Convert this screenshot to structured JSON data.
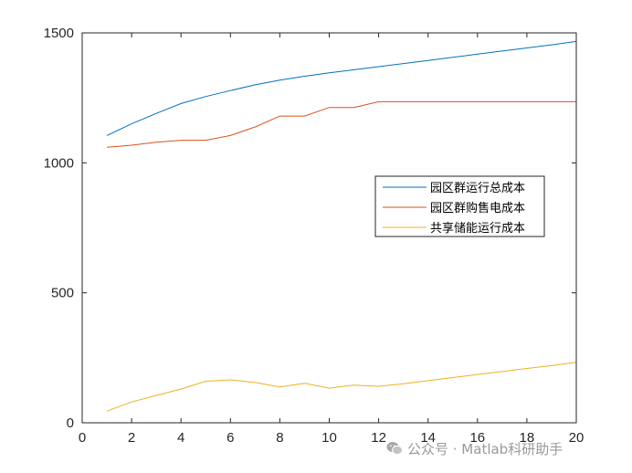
{
  "chart_data": {
    "type": "line",
    "xlim": [
      0,
      20
    ],
    "ylim": [
      0,
      1500
    ],
    "xticks": [
      0,
      2,
      4,
      6,
      8,
      10,
      12,
      14,
      16,
      18,
      20
    ],
    "yticks": [
      0,
      500,
      1000,
      1500
    ],
    "grid": false,
    "legend_position": "right",
    "x": [
      1,
      2,
      3,
      4,
      5,
      6,
      7,
      8,
      9,
      10,
      11,
      12,
      13,
      14,
      15,
      16,
      17,
      18,
      19,
      20
    ],
    "series": [
      {
        "name": "园区群运行总成本",
        "color": "#0072bd",
        "values": [
          1105,
          1150,
          1190,
          1228,
          1255,
          1278,
          1300,
          1318,
          1333,
          1346,
          1358,
          1370,
          1382,
          1394,
          1406,
          1418,
          1430,
          1442,
          1454,
          1467
        ]
      },
      {
        "name": "园区群购售电成本",
        "color": "#d95319",
        "values": [
          1060,
          1068,
          1079,
          1087,
          1087,
          1105,
          1138,
          1180,
          1180,
          1213,
          1213,
          1235,
          1235,
          1235,
          1235,
          1235,
          1235,
          1235,
          1235,
          1235
        ]
      },
      {
        "name": "共享储能运行成本",
        "color": "#edb120",
        "values": [
          45,
          80,
          105,
          130,
          160,
          165,
          155,
          138,
          152,
          133,
          145,
          140,
          150,
          162,
          174,
          186,
          197,
          209,
          220,
          233
        ]
      }
    ]
  },
  "watermark": {
    "icon": "wechat-icon",
    "text": "公众号 · Matlab科研助手"
  }
}
